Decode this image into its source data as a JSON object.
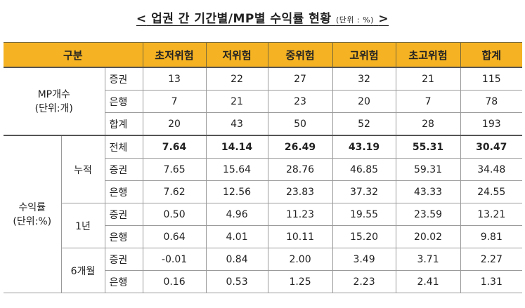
{
  "title": {
    "prefix": "<",
    "main": "업권 간 기간별/MP별 수익률 현황",
    "unit": "(단위 : %)",
    "suffix": ">"
  },
  "header": {
    "category": "구분",
    "columns": [
      "초저위험",
      "저위험",
      "중위험",
      "고위험",
      "초고위험",
      "합계"
    ]
  },
  "mp_count": {
    "label_line1": "MP개수",
    "label_line2": "(단위:개)",
    "rows": [
      {
        "sub": "증권",
        "values": [
          "13",
          "22",
          "27",
          "32",
          "21",
          "115"
        ]
      },
      {
        "sub": "은행",
        "values": [
          "7",
          "21",
          "23",
          "20",
          "7",
          "78"
        ]
      },
      {
        "sub": "합계",
        "values": [
          "20",
          "43",
          "50",
          "52",
          "28",
          "193"
        ]
      }
    ]
  },
  "returns": {
    "label_line1": "수익률",
    "label_line2": "(단위:%)",
    "groups": [
      {
        "period": "누적",
        "rows": [
          {
            "sub": "전체",
            "values": [
              "7.64",
              "14.14",
              "26.49",
              "43.19",
              "55.31",
              "30.47"
            ]
          },
          {
            "sub": "증권",
            "values": [
              "7.65",
              "15.64",
              "28.76",
              "46.85",
              "59.31",
              "34.48"
            ]
          },
          {
            "sub": "은행",
            "values": [
              "7.62",
              "12.56",
              "23.83",
              "37.32",
              "43.33",
              "24.55"
            ]
          }
        ]
      },
      {
        "period": "1년",
        "rows": [
          {
            "sub": "증권",
            "values": [
              "0.50",
              "4.96",
              "11.23",
              "19.55",
              "23.59",
              "13.21"
            ]
          },
          {
            "sub": "은행",
            "values": [
              "0.64",
              "4.01",
              "10.11",
              "15.20",
              "20.02",
              "9.81"
            ]
          }
        ]
      },
      {
        "period": "6개월",
        "rows": [
          {
            "sub": "증권",
            "values": [
              "-0.01",
              "0.84",
              "2.00",
              "3.49",
              "3.71",
              "2.27"
            ]
          },
          {
            "sub": "은행",
            "values": [
              "0.16",
              "0.53",
              "1.25",
              "2.23",
              "2.41",
              "1.31"
            ]
          }
        ]
      }
    ]
  },
  "colors": {
    "header_bg": "#f5b323"
  }
}
